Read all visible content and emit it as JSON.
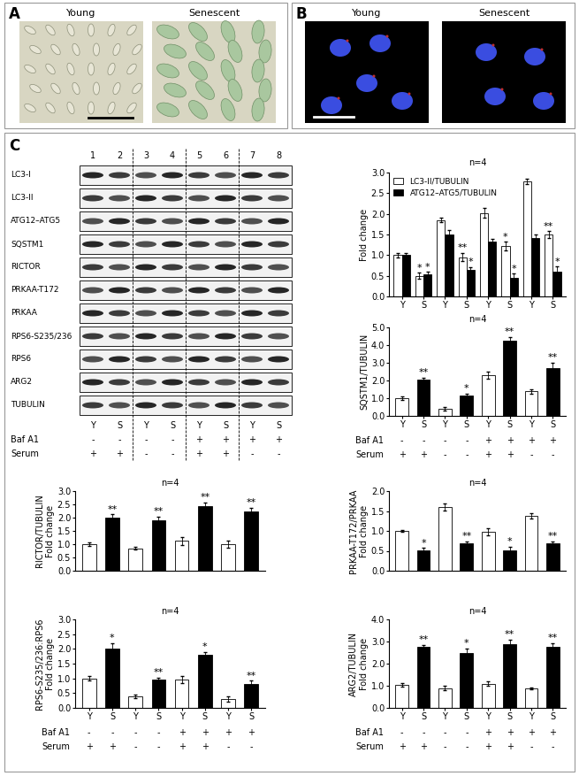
{
  "panel_A": {
    "label": "A",
    "images": [
      "Young",
      "Senescent"
    ]
  },
  "panel_B": {
    "label": "B",
    "images": [
      "Young",
      "Senescent"
    ]
  },
  "panel_C": {
    "label": "C",
    "blot": {
      "lanes": [
        1,
        2,
        3,
        4,
        5,
        6,
        7,
        8
      ],
      "rows": [
        "LC3-I",
        "LC3-II",
        "ATG12–ATG5",
        "SQSTM1",
        "RICTOR",
        "PRKAA-T172",
        "PRKAA",
        "RPS6-S235/236",
        "RPS6",
        "ARG2",
        "TUBULIN"
      ],
      "groups": [
        "Y",
        "S",
        "Y",
        "S",
        "Y",
        "S",
        "Y",
        "S"
      ],
      "conditions": [
        {
          "name": "Baf A1",
          "values": [
            "-",
            "-",
            "-",
            "-",
            "+",
            "+",
            "+",
            "+"
          ]
        },
        {
          "name": "Serum",
          "values": [
            "+",
            "+",
            "-",
            "-",
            "+",
            "+",
            "-",
            "-"
          ]
        }
      ]
    }
  },
  "chart_data": [
    {
      "type": "bar",
      "categories": [
        "Y",
        "S",
        "Y",
        "S",
        "Y",
        "S",
        "Y",
        "S"
      ],
      "ylabel": "Fold change",
      "annotation": "n=4",
      "legend": "upper left",
      "ylim": [
        0,
        3.0
      ],
      "yticks": [
        {
          "value": 0,
          "label": "0.0"
        },
        {
          "value": 0.5,
          "label": "0.5"
        },
        {
          "value": 1.0,
          "label": "1.0"
        },
        {
          "value": 1.5,
          "label": "1.5"
        },
        {
          "value": 2.0,
          "label": "2.0"
        },
        {
          "value": 2.5,
          "label": "2.5"
        },
        {
          "value": 3.0,
          "label": "3.0"
        }
      ],
      "series": [
        {
          "name": "LC3-II/TUBULIN",
          "color": "#ffffff",
          "values": [
            1.0,
            0.5,
            1.85,
            0.95,
            2.02,
            1.22,
            2.78,
            1.5
          ],
          "errors": [
            0.06,
            0.07,
            0.06,
            0.1,
            0.12,
            0.1,
            0.06,
            0.08
          ],
          "significance": [
            null,
            "*",
            null,
            "**",
            null,
            "*",
            null,
            "**"
          ]
        },
        {
          "name": "ATG12–ATG5/TUBULIN",
          "color": "#000000",
          "values": [
            1.0,
            0.53,
            1.5,
            0.65,
            1.32,
            0.45,
            1.42,
            0.6
          ],
          "errors": [
            0.05,
            0.06,
            0.1,
            0.06,
            0.08,
            0.1,
            0.08,
            0.12
          ],
          "significance": [
            null,
            "*",
            null,
            "*",
            null,
            "*",
            null,
            "*"
          ]
        }
      ]
    },
    {
      "type": "bar",
      "categories": [
        "Y",
        "S",
        "Y",
        "S",
        "Y",
        "S",
        "Y",
        "S"
      ],
      "ylabel": "SQSTM1/TUBULIN",
      "annotation": "n=4",
      "ylim": [
        0,
        5.0
      ],
      "yticks": [
        {
          "value": 0,
          "label": "0.0"
        },
        {
          "value": 1.0,
          "label": "1.0"
        },
        {
          "value": 2.0,
          "label": "2.0"
        },
        {
          "value": 3.0,
          "label": "3.0"
        },
        {
          "value": 4.0,
          "label": "4.0"
        },
        {
          "value": 5.0,
          "label": "5.0"
        }
      ],
      "values": [
        1.0,
        2.05,
        0.38,
        1.15,
        2.3,
        4.25,
        1.38,
        2.7
      ],
      "errors": [
        0.1,
        0.12,
        0.1,
        0.1,
        0.2,
        0.22,
        0.12,
        0.3
      ],
      "significance": [
        null,
        "**",
        null,
        "*",
        null,
        "**",
        null,
        "**"
      ],
      "colors": [
        "#ffffff",
        "#000000",
        "#ffffff",
        "#000000",
        "#ffffff",
        "#000000",
        "#ffffff",
        "#000000"
      ],
      "conditions": [
        {
          "name": "Baf A1",
          "values": [
            "-",
            "-",
            "-",
            "-",
            "+",
            "+",
            "+",
            "+"
          ]
        },
        {
          "name": "Serum",
          "values": [
            "+",
            "+",
            "-",
            "-",
            "+",
            "+",
            "-",
            "-"
          ]
        }
      ]
    },
    {
      "type": "bar",
      "categories": [
        null,
        null,
        null,
        null,
        null,
        null,
        null,
        null
      ],
      "tick_labels": "y",
      "ylabel": "RICTOR/TUBULIN\nFold change",
      "annotation": "n=4",
      "ylim": [
        0,
        3.0
      ],
      "yticks": [
        {
          "value": 0,
          "label": "0.0"
        },
        {
          "value": 0.5,
          "label": "0.5"
        },
        {
          "value": 1.0,
          "label": "1.0"
        },
        {
          "value": 1.5,
          "label": "1.5"
        },
        {
          "value": 2.0,
          "label": "2.0"
        },
        {
          "value": 2.5,
          "label": "2.5"
        },
        {
          "value": 3.0,
          "label": "3.0"
        }
      ],
      "values": [
        1.0,
        2.0,
        0.85,
        1.9,
        1.12,
        2.45,
        1.0,
        2.25
      ],
      "errors": [
        0.07,
        0.12,
        0.06,
        0.15,
        0.15,
        0.12,
        0.13,
        0.12
      ],
      "significance": [
        null,
        "**",
        null,
        "**",
        null,
        "**",
        null,
        "**"
      ],
      "colors": [
        "#ffffff",
        "#000000",
        "#ffffff",
        "#000000",
        "#ffffff",
        "#000000",
        "#ffffff",
        "#000000"
      ]
    },
    {
      "type": "bar",
      "categories": [
        null,
        null,
        null,
        null,
        null,
        null,
        null,
        null
      ],
      "tick_labels": "y",
      "ylabel": "PRKAA-T172/PRKAA\nFold change",
      "annotation": "n=4",
      "ylim": [
        0,
        2.0
      ],
      "yticks": [
        {
          "value": 0,
          "label": "0.0"
        },
        {
          "value": 0.5,
          "label": "0.5"
        },
        {
          "value": 1.0,
          "label": "1.0"
        },
        {
          "value": 1.5,
          "label": "1.5"
        },
        {
          "value": 2.0,
          "label": "2.0"
        }
      ],
      "values": [
        1.0,
        0.52,
        1.6,
        0.68,
        0.98,
        0.52,
        1.38,
        0.68
      ],
      "errors": [
        0.03,
        0.05,
        0.08,
        0.05,
        0.08,
        0.08,
        0.06,
        0.06
      ],
      "significance": [
        null,
        "*",
        null,
        "**",
        null,
        "*",
        null,
        "**"
      ],
      "colors": [
        "#ffffff",
        "#000000",
        "#ffffff",
        "#000000",
        "#ffffff",
        "#000000",
        "#ffffff",
        "#000000"
      ]
    },
    {
      "type": "bar",
      "categories": [
        "Y",
        "S",
        "Y",
        "S",
        "Y",
        "S",
        "Y",
        "S"
      ],
      "ylabel": "RPS6-S235/236:RPS6\nFold change",
      "annotation": "n=4",
      "ylim": [
        0,
        3.0
      ],
      "yticks": [
        {
          "value": 0,
          "label": "0.0"
        },
        {
          "value": 0.5,
          "label": "0.5"
        },
        {
          "value": 1.0,
          "label": "1.0"
        },
        {
          "value": 1.5,
          "label": "1.5"
        },
        {
          "value": 2.0,
          "label": "2.0"
        },
        {
          "value": 2.5,
          "label": "2.5"
        },
        {
          "value": 3.0,
          "label": "3.0"
        }
      ],
      "values": [
        1.0,
        2.0,
        0.38,
        0.95,
        0.95,
        1.8,
        0.3,
        0.8
      ],
      "errors": [
        0.08,
        0.2,
        0.06,
        0.08,
        0.12,
        0.1,
        0.08,
        0.12
      ],
      "significance": [
        null,
        "*",
        null,
        "**",
        null,
        "*",
        null,
        "**"
      ],
      "colors": [
        "#ffffff",
        "#000000",
        "#ffffff",
        "#000000",
        "#ffffff",
        "#000000",
        "#ffffff",
        "#000000"
      ],
      "conditions": [
        {
          "name": "Baf A1",
          "values": [
            "-",
            "-",
            "-",
            "-",
            "+",
            "+",
            "+",
            "+"
          ]
        },
        {
          "name": "Serum",
          "values": [
            "+",
            "+",
            "-",
            "-",
            "+",
            "+",
            "-",
            "-"
          ]
        }
      ]
    },
    {
      "type": "bar",
      "categories": [
        "Y",
        "S",
        "Y",
        "S",
        "Y",
        "S",
        "Y",
        "S"
      ],
      "ylabel": "ARG2/TUBULIN\nFold change",
      "annotation": "n=4",
      "ylim": [
        0,
        4.0
      ],
      "yticks": [
        {
          "value": 0,
          "label": "0.0"
        },
        {
          "value": 1.0,
          "label": "1.0"
        },
        {
          "value": 2.0,
          "label": "2.0"
        },
        {
          "value": 3.0,
          "label": "3.0"
        },
        {
          "value": 4.0,
          "label": "4.0"
        }
      ],
      "values": [
        1.05,
        2.75,
        0.9,
        2.5,
        1.1,
        2.9,
        0.88,
        2.75
      ],
      "errors": [
        0.08,
        0.1,
        0.1,
        0.2,
        0.1,
        0.2,
        0.05,
        0.18
      ],
      "significance": [
        null,
        "**",
        null,
        "*",
        null,
        "**",
        null,
        "**"
      ],
      "colors": [
        "#ffffff",
        "#000000",
        "#ffffff",
        "#000000",
        "#ffffff",
        "#000000",
        "#ffffff",
        "#000000"
      ],
      "conditions": [
        {
          "name": "Baf A1",
          "values": [
            "-",
            "-",
            "-",
            "-",
            "+",
            "+",
            "+",
            "+"
          ]
        },
        {
          "name": "Serum",
          "values": [
            "+",
            "+",
            "-",
            "-",
            "+",
            "+",
            "-",
            "-"
          ]
        }
      ]
    }
  ]
}
